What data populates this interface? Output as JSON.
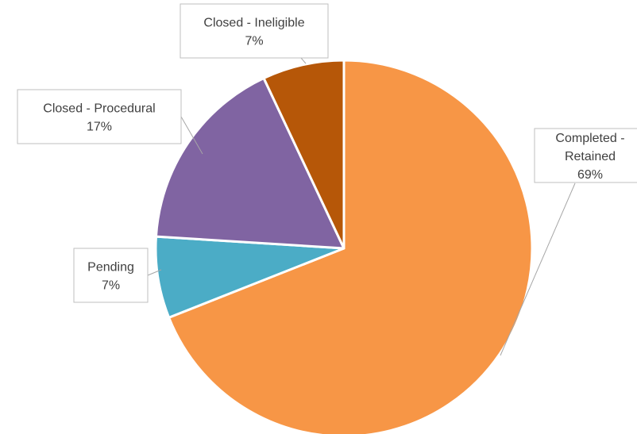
{
  "chart_data": {
    "type": "pie",
    "title": "",
    "slices": [
      {
        "label": "Completed - Retained",
        "label_lines": [
          "Completed -",
          "Retained"
        ],
        "percent_text": "69%",
        "value": 69,
        "color": "#F79646"
      },
      {
        "label": "Pending",
        "label_lines": [
          "Pending"
        ],
        "percent_text": "7%",
        "value": 7,
        "color": "#4BACC6"
      },
      {
        "label": "Closed - Procedural",
        "label_lines": [
          "Closed - Procedural"
        ],
        "percent_text": "17%",
        "value": 17,
        "color": "#8064A2"
      },
      {
        "label": "Closed - Ineligible",
        "label_lines": [
          "Closed - Ineligible"
        ],
        "percent_text": "7%",
        "value": 7,
        "color": "#B65708"
      }
    ],
    "start": "12 o'clock",
    "direction": "clockwise",
    "legend": "none",
    "data_labels": "callouts"
  }
}
